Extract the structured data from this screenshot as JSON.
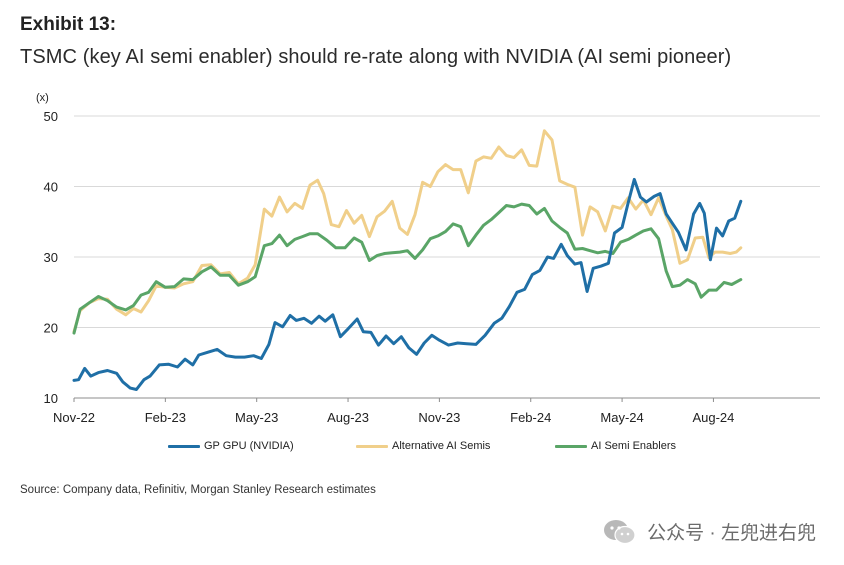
{
  "header": {
    "exhibit": "Exhibit 13:",
    "title": "TSMC (key AI semi enabler) should re-rate along with NVIDIA (AI semi pioneer)"
  },
  "source": "Source: Company data, Refinitiv, Morgan Stanley Research estimates",
  "watermark": {
    "text": "公众号 · 左兜进右兜",
    "icon": "wechat-icon"
  },
  "chart_data": {
    "type": "line",
    "title": "TSMC (key AI semi enabler) should re-rate along with NVIDIA (AI semi pioneer)",
    "ylabel": "(x)",
    "xlabel": "",
    "ylim": [
      10,
      50
    ],
    "yticks": [
      "10",
      "20",
      "30",
      "40",
      "50"
    ],
    "xlim": [
      0,
      24.5
    ],
    "xticks": [
      {
        "x": 0,
        "label": "Nov-22"
      },
      {
        "x": 3,
        "label": "Feb-23"
      },
      {
        "x": 6,
        "label": "May-23"
      },
      {
        "x": 9,
        "label": "Aug-23"
      },
      {
        "x": 12,
        "label": "Nov-23"
      },
      {
        "x": 15,
        "label": "Feb-24"
      },
      {
        "x": 18,
        "label": "May-24"
      },
      {
        "x": 21,
        "label": "Aug-24"
      }
    ],
    "grid": "horizontal",
    "legend_position": "bottom",
    "series": [
      {
        "name": "GP GPU (NVIDIA)",
        "color": "#1f6fa6",
        "points": [
          [
            0,
            12.5
          ],
          [
            0.15,
            12.6
          ],
          [
            0.35,
            14.2
          ],
          [
            0.55,
            13.1
          ],
          [
            0.8,
            13.6
          ],
          [
            1.1,
            13.9
          ],
          [
            1.4,
            13.5
          ],
          [
            1.6,
            12.3
          ],
          [
            1.85,
            11.4
          ],
          [
            2.05,
            11.2
          ],
          [
            2.3,
            12.6
          ],
          [
            2.5,
            13.1
          ],
          [
            2.8,
            14.7
          ],
          [
            3.1,
            14.8
          ],
          [
            3.4,
            14.4
          ],
          [
            3.65,
            15.5
          ],
          [
            3.9,
            14.7
          ],
          [
            4.1,
            16.1
          ],
          [
            4.4,
            16.5
          ],
          [
            4.7,
            16.9
          ],
          [
            5.0,
            16.0
          ],
          [
            5.3,
            15.8
          ],
          [
            5.6,
            15.8
          ],
          [
            5.9,
            16.0
          ],
          [
            6.15,
            15.6
          ],
          [
            6.4,
            17.6
          ],
          [
            6.6,
            20.7
          ],
          [
            6.85,
            20.1
          ],
          [
            7.1,
            21.7
          ],
          [
            7.3,
            21.0
          ],
          [
            7.55,
            21.3
          ],
          [
            7.8,
            20.6
          ],
          [
            8.05,
            21.6
          ],
          [
            8.25,
            20.9
          ],
          [
            8.5,
            21.8
          ],
          [
            8.75,
            18.7
          ],
          [
            9.0,
            19.8
          ],
          [
            9.3,
            21.2
          ],
          [
            9.5,
            19.4
          ],
          [
            9.75,
            19.3
          ],
          [
            10.0,
            17.5
          ],
          [
            10.25,
            18.8
          ],
          [
            10.5,
            17.7
          ],
          [
            10.75,
            18.7
          ],
          [
            11.0,
            17.1
          ],
          [
            11.25,
            16.2
          ],
          [
            11.5,
            17.8
          ],
          [
            11.75,
            18.9
          ],
          [
            12.0,
            18.2
          ],
          [
            12.3,
            17.5
          ],
          [
            12.6,
            17.8
          ],
          [
            12.9,
            17.7
          ],
          [
            13.2,
            17.6
          ],
          [
            13.5,
            18.9
          ],
          [
            13.8,
            20.6
          ],
          [
            14.05,
            21.3
          ],
          [
            14.3,
            23.0
          ],
          [
            14.55,
            25.0
          ],
          [
            14.8,
            25.4
          ],
          [
            15.05,
            27.5
          ],
          [
            15.3,
            28.1
          ],
          [
            15.55,
            30.0
          ],
          [
            15.75,
            29.8
          ],
          [
            16.0,
            31.8
          ],
          [
            16.2,
            30.2
          ],
          [
            16.45,
            29.0
          ],
          [
            16.65,
            29.2
          ],
          [
            16.85,
            25.1
          ],
          [
            17.05,
            28.4
          ],
          [
            17.3,
            28.7
          ],
          [
            17.55,
            29.1
          ],
          [
            17.75,
            33.4
          ],
          [
            18.0,
            34.2
          ],
          [
            18.2,
            37.7
          ],
          [
            18.4,
            41.0
          ],
          [
            18.6,
            38.5
          ],
          [
            18.8,
            37.8
          ],
          [
            19.05,
            38.6
          ],
          [
            19.25,
            39.0
          ],
          [
            19.45,
            36.1
          ],
          [
            19.65,
            34.8
          ],
          [
            19.85,
            33.5
          ],
          [
            20.1,
            31.0
          ],
          [
            20.35,
            36.1
          ],
          [
            20.55,
            37.6
          ],
          [
            20.7,
            36.2
          ],
          [
            20.9,
            29.6
          ],
          [
            21.1,
            34.1
          ],
          [
            21.3,
            33.0
          ],
          [
            21.5,
            35.1
          ],
          [
            21.7,
            35.5
          ],
          [
            21.9,
            37.9
          ]
        ]
      },
      {
        "name": "Alternative AI Semis",
        "color": "#f0cf8a",
        "points": [
          [
            0,
            19.4
          ],
          [
            0.2,
            22.4
          ],
          [
            0.5,
            23.5
          ],
          [
            0.8,
            24.1
          ],
          [
            1.1,
            24.0
          ],
          [
            1.4,
            22.6
          ],
          [
            1.7,
            21.8
          ],
          [
            1.95,
            22.7
          ],
          [
            2.2,
            22.2
          ],
          [
            2.45,
            23.8
          ],
          [
            2.7,
            25.9
          ],
          [
            3.0,
            25.7
          ],
          [
            3.3,
            25.6
          ],
          [
            3.6,
            26.2
          ],
          [
            3.9,
            26.5
          ],
          [
            4.2,
            28.8
          ],
          [
            4.5,
            28.9
          ],
          [
            4.8,
            27.6
          ],
          [
            5.1,
            27.8
          ],
          [
            5.4,
            26.2
          ],
          [
            5.7,
            27.0
          ],
          [
            5.95,
            28.9
          ],
          [
            6.25,
            36.8
          ],
          [
            6.5,
            35.8
          ],
          [
            6.75,
            38.5
          ],
          [
            7.0,
            36.4
          ],
          [
            7.25,
            37.6
          ],
          [
            7.5,
            36.9
          ],
          [
            7.75,
            40.2
          ],
          [
            8.0,
            40.9
          ],
          [
            8.2,
            39.0
          ],
          [
            8.45,
            34.6
          ],
          [
            8.7,
            34.3
          ],
          [
            8.95,
            36.6
          ],
          [
            9.2,
            34.8
          ],
          [
            9.45,
            35.9
          ],
          [
            9.7,
            32.9
          ],
          [
            9.95,
            35.7
          ],
          [
            10.2,
            36.5
          ],
          [
            10.45,
            37.9
          ],
          [
            10.7,
            34.1
          ],
          [
            10.95,
            33.2
          ],
          [
            11.2,
            36.0
          ],
          [
            11.45,
            40.6
          ],
          [
            11.7,
            40.0
          ],
          [
            11.95,
            42.1
          ],
          [
            12.2,
            43.1
          ],
          [
            12.45,
            42.4
          ],
          [
            12.7,
            42.4
          ],
          [
            12.95,
            39.1
          ],
          [
            13.2,
            43.6
          ],
          [
            13.45,
            44.2
          ],
          [
            13.7,
            44.0
          ],
          [
            13.95,
            45.6
          ],
          [
            14.2,
            44.4
          ],
          [
            14.45,
            44.1
          ],
          [
            14.7,
            45.2
          ],
          [
            14.95,
            43.0
          ],
          [
            15.2,
            42.9
          ],
          [
            15.45,
            47.9
          ],
          [
            15.7,
            46.6
          ],
          [
            15.95,
            40.8
          ],
          [
            16.2,
            40.3
          ],
          [
            16.45,
            39.9
          ],
          [
            16.7,
            33.1
          ],
          [
            16.95,
            37.1
          ],
          [
            17.2,
            36.4
          ],
          [
            17.45,
            33.7
          ],
          [
            17.7,
            37.2
          ],
          [
            17.95,
            36.9
          ],
          [
            18.2,
            38.4
          ],
          [
            18.45,
            36.8
          ],
          [
            18.7,
            38.1
          ],
          [
            18.95,
            36.0
          ],
          [
            19.2,
            38.4
          ],
          [
            19.45,
            35.8
          ],
          [
            19.65,
            33.9
          ],
          [
            19.9,
            29.1
          ],
          [
            20.15,
            29.6
          ],
          [
            20.4,
            32.7
          ],
          [
            20.65,
            32.8
          ],
          [
            20.85,
            29.9
          ],
          [
            21.05,
            30.7
          ],
          [
            21.3,
            30.7
          ],
          [
            21.55,
            30.5
          ],
          [
            21.75,
            30.7
          ],
          [
            21.9,
            31.3
          ]
        ]
      },
      {
        "name": "AI Semi Enablers",
        "color": "#5aa567",
        "points": [
          [
            0,
            19.2
          ],
          [
            0.2,
            22.6
          ],
          [
            0.5,
            23.5
          ],
          [
            0.8,
            24.4
          ],
          [
            1.1,
            23.8
          ],
          [
            1.4,
            22.9
          ],
          [
            1.7,
            22.5
          ],
          [
            1.95,
            23.1
          ],
          [
            2.2,
            24.6
          ],
          [
            2.45,
            25.0
          ],
          [
            2.7,
            26.5
          ],
          [
            3.0,
            25.7
          ],
          [
            3.3,
            25.8
          ],
          [
            3.6,
            26.9
          ],
          [
            3.9,
            26.8
          ],
          [
            4.2,
            27.9
          ],
          [
            4.5,
            28.6
          ],
          [
            4.8,
            27.4
          ],
          [
            5.1,
            27.4
          ],
          [
            5.4,
            26.0
          ],
          [
            5.7,
            26.5
          ],
          [
            5.95,
            27.2
          ],
          [
            6.25,
            31.6
          ],
          [
            6.5,
            31.9
          ],
          [
            6.75,
            33.1
          ],
          [
            7.0,
            31.6
          ],
          [
            7.25,
            32.5
          ],
          [
            7.5,
            32.9
          ],
          [
            7.75,
            33.3
          ],
          [
            8.0,
            33.3
          ],
          [
            8.3,
            32.4
          ],
          [
            8.6,
            31.3
          ],
          [
            8.9,
            31.3
          ],
          [
            9.2,
            32.7
          ],
          [
            9.45,
            32.1
          ],
          [
            9.7,
            29.5
          ],
          [
            9.95,
            30.2
          ],
          [
            10.2,
            30.5
          ],
          [
            10.45,
            30.6
          ],
          [
            10.7,
            30.7
          ],
          [
            10.95,
            30.9
          ],
          [
            11.2,
            29.8
          ],
          [
            11.45,
            31.0
          ],
          [
            11.7,
            32.6
          ],
          [
            11.95,
            33.0
          ],
          [
            12.2,
            33.6
          ],
          [
            12.45,
            34.7
          ],
          [
            12.7,
            34.3
          ],
          [
            12.95,
            31.6
          ],
          [
            13.2,
            33.1
          ],
          [
            13.45,
            34.5
          ],
          [
            13.7,
            35.3
          ],
          [
            13.95,
            36.3
          ],
          [
            14.2,
            37.3
          ],
          [
            14.45,
            37.1
          ],
          [
            14.7,
            37.5
          ],
          [
            14.95,
            37.3
          ],
          [
            15.2,
            36.1
          ],
          [
            15.45,
            36.9
          ],
          [
            15.7,
            35.1
          ],
          [
            15.95,
            34.2
          ],
          [
            16.2,
            33.4
          ],
          [
            16.45,
            31.1
          ],
          [
            16.7,
            31.2
          ],
          [
            16.95,
            30.9
          ],
          [
            17.2,
            30.6
          ],
          [
            17.45,
            30.8
          ],
          [
            17.7,
            30.5
          ],
          [
            17.95,
            32.1
          ],
          [
            18.2,
            32.5
          ],
          [
            18.45,
            33.1
          ],
          [
            18.7,
            33.7
          ],
          [
            18.95,
            34.0
          ],
          [
            19.2,
            32.6
          ],
          [
            19.45,
            28.0
          ],
          [
            19.65,
            25.8
          ],
          [
            19.9,
            26.0
          ],
          [
            20.15,
            26.8
          ],
          [
            20.4,
            26.2
          ],
          [
            20.6,
            24.3
          ],
          [
            20.85,
            25.3
          ],
          [
            21.1,
            25.3
          ],
          [
            21.35,
            26.4
          ],
          [
            21.6,
            26.1
          ],
          [
            21.9,
            26.8
          ]
        ]
      }
    ]
  }
}
